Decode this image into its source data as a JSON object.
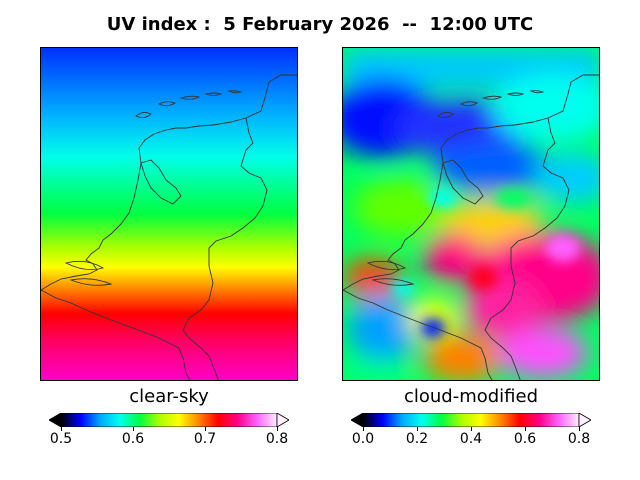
{
  "title": "UV index :  5 February 2026  --  12:00 UTC",
  "panels": [
    {
      "label": "clear-sky",
      "colorbar": {
        "min": 0.5,
        "max": 0.8,
        "ticks": [
          "0.5",
          "0.6",
          "0.7",
          "0.8"
        ]
      }
    },
    {
      "label": "cloud-modified",
      "colorbar": {
        "min": 0.0,
        "max": 0.8,
        "ticks": [
          "0.0",
          "0.2",
          "0.4",
          "0.6",
          "0.8"
        ]
      }
    }
  ],
  "colors": {
    "colormap": [
      "#000000",
      "#0000ff",
      "#00aaff",
      "#00ffee",
      "#00ff44",
      "#aaff00",
      "#ffff00",
      "#ff8800",
      "#ff0000",
      "#ff0088",
      "#ff66ff",
      "#ffeeff"
    ],
    "border": "#333333"
  }
}
